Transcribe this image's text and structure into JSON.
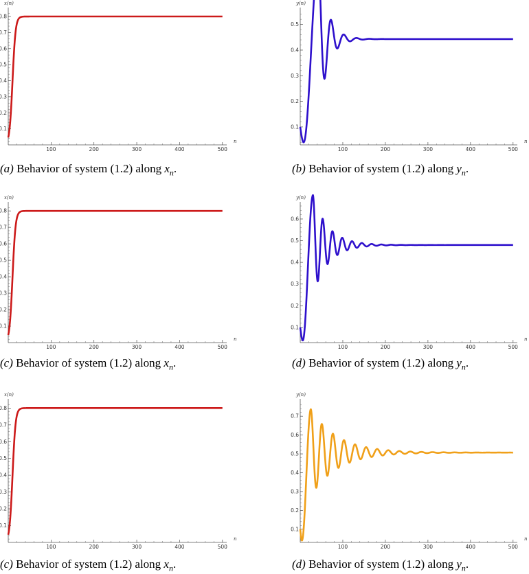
{
  "chart_data": [
    {
      "type": "line",
      "panel_id": "a",
      "caption": {
        "label": "(a)",
        "text": "Behavior of system (1.2) along",
        "var": "x",
        "sub": "n",
        "end": "."
      },
      "xlabel": "n",
      "ylabel": "x(n)",
      "xlim": [
        0,
        510
      ],
      "ylim": [
        0,
        0.83
      ],
      "xticks": [
        100,
        200,
        300,
        400,
        500
      ],
      "yticks": [
        0.1,
        0.2,
        0.3,
        0.4,
        0.5,
        0.6,
        0.7,
        0.8
      ],
      "color": "#cc1a1a",
      "series": [
        {
          "kind": "logistic",
          "start": 0.0,
          "end": 0.8,
          "rate": 0.28,
          "mid": 10,
          "x_end": 500
        }
      ]
    },
    {
      "type": "line",
      "panel_id": "b",
      "caption": {
        "label": "(b)",
        "text": "Behavior of system (1.2) along",
        "var": "y",
        "sub": "n",
        "end": "."
      },
      "xlabel": "n",
      "ylabel": "y(n)",
      "xlim": [
        0,
        510
      ],
      "ylim": [
        0.03,
        0.55
      ],
      "xticks": [
        100,
        200,
        300,
        400,
        500
      ],
      "yticks": [
        0.1,
        0.2,
        0.3,
        0.4,
        0.5
      ],
      "color": "#2e10cc",
      "series": [
        {
          "kind": "damped",
          "start": 0.1,
          "min": 0.04,
          "equilibrium": 0.443,
          "amplitude": 0.31,
          "decay": 0.048,
          "period": 30,
          "t_min": 8,
          "t_peak": 43,
          "x_end": 500
        }
      ]
    },
    {
      "type": "line",
      "panel_id": "c",
      "caption": {
        "label": "(c)",
        "text": "Behavior of system (1.2) along",
        "var": "x",
        "sub": "n",
        "end": "."
      },
      "xlabel": "n",
      "ylabel": "x(n)",
      "xlim": [
        0,
        510
      ],
      "ylim": [
        0,
        0.83
      ],
      "xticks": [
        100,
        200,
        300,
        400,
        500
      ],
      "yticks": [
        0.1,
        0.2,
        0.3,
        0.4,
        0.5,
        0.6,
        0.7,
        0.8
      ],
      "color": "#cc1a1a",
      "series": [
        {
          "kind": "logistic",
          "start": 0.0,
          "end": 0.8,
          "rate": 0.28,
          "mid": 10,
          "x_end": 500
        }
      ]
    },
    {
      "type": "line",
      "panel_id": "d",
      "caption": {
        "label": "(d)",
        "text": "Behavior of system (1.2) along",
        "var": "y",
        "sub": "n",
        "end": "."
      },
      "xlabel": "n",
      "ylabel": "y(n)",
      "xlim": [
        0,
        510
      ],
      "ylim": [
        0.03,
        0.66
      ],
      "xticks": [
        100,
        200,
        300,
        400,
        500
      ],
      "yticks": [
        0.1,
        0.2,
        0.3,
        0.4,
        0.5,
        0.6
      ],
      "color": "#2e10cc",
      "series": [
        {
          "kind": "damped",
          "start": 0.1,
          "min": 0.04,
          "equilibrium": 0.48,
          "amplitude": 0.23,
          "decay": 0.028,
          "period": 23,
          "t_min": 6,
          "t_peak": 30,
          "x_end": 500
        }
      ]
    },
    {
      "type": "line",
      "panel_id": "c2",
      "caption": {
        "label": "(c)",
        "text": "Behavior of system (1.2) along",
        "var": "x",
        "sub": "n",
        "end": "."
      },
      "xlabel": "n",
      "ylabel": "x(n)",
      "xlim": [
        0,
        510
      ],
      "ylim": [
        0,
        0.83
      ],
      "xticks": [
        100,
        200,
        300,
        400,
        500
      ],
      "yticks": [
        0.1,
        0.2,
        0.3,
        0.4,
        0.5,
        0.6,
        0.7,
        0.8
      ],
      "color": "#cc1a1a",
      "series": [
        {
          "kind": "logistic",
          "start": 0.0,
          "end": 0.8,
          "rate": 0.28,
          "mid": 10,
          "x_end": 500
        }
      ]
    },
    {
      "type": "line",
      "panel_id": "d2",
      "caption": {
        "label": "(d)",
        "text": "Behavior of system (1.2) along",
        "var": "y",
        "sub": "n",
        "end": "."
      },
      "xlabel": "n",
      "ylabel": "y(n)",
      "xlim": [
        0,
        510
      ],
      "ylim": [
        0.03,
        0.77
      ],
      "xticks": [
        100,
        200,
        300,
        400,
        500
      ],
      "yticks": [
        0.1,
        0.2,
        0.3,
        0.4,
        0.5,
        0.6,
        0.7
      ],
      "color": "#f0a019",
      "series": [
        {
          "kind": "damped",
          "start": 0.1,
          "min": 0.04,
          "equilibrium": 0.507,
          "amplitude": 0.23,
          "decay": 0.016,
          "period": 26,
          "t_min": 4,
          "t_peak": 25,
          "x_end": 500
        }
      ]
    }
  ]
}
